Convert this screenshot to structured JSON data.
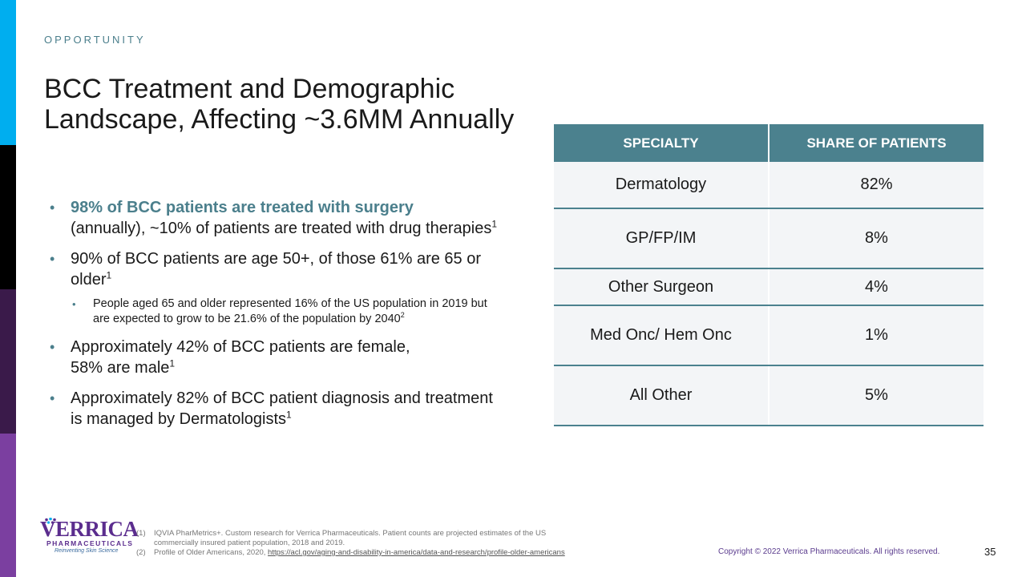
{
  "edge_colors": [
    "#00aeef",
    "#000000",
    "#3a1a4a",
    "#7b3fa0"
  ],
  "eyebrow": "OPPORTUNITY",
  "title": "BCC Treatment and Demographic Landscape, Affecting ~3.6MM Annually",
  "bullets": [
    {
      "highlight": "98% of BCC patients are treated with surgery",
      "text": "(annually), ~10% of patients are treated with drug therapies",
      "sup": "1"
    },
    {
      "text": "90% of BCC patients are age 50+, of those 61% are 65 or older",
      "sup": "1",
      "sub": {
        "text": "People aged 65 and older represented 16% of the US population in 2019 but are expected to grow to be 21.6% of the population by 2040",
        "sup": "2"
      }
    },
    {
      "line1": "Approximately 42% of BCC patients are female,",
      "line2": "58% are male",
      "sup": "1"
    },
    {
      "text": "Approximately 82% of BCC patient diagnosis and treatment is managed by Dermatologists",
      "sup": "1"
    }
  ],
  "table": {
    "headers": [
      "SPECIALTY",
      "SHARE OF PATIENTS"
    ],
    "rows": [
      {
        "specialty": "Dermatology",
        "share": "82%"
      },
      {
        "specialty": "GP/FP/IM",
        "share": "8%"
      },
      {
        "specialty": "Other Surgeon",
        "share": "4%"
      },
      {
        "specialty": "Med Onc/ Hem Onc",
        "share": "1%"
      },
      {
        "specialty": "All Other",
        "share": "5%"
      }
    ]
  },
  "logo": {
    "word": "VERRICA",
    "sub": "PHARMACEUTICALS",
    "tagline": "Reinventing Skin Science"
  },
  "footnotes": [
    {
      "num": "(1)",
      "text": "IQVIA PharMetrics+. Custom research for Verrica Pharmaceuticals.  Patient counts are projected estimates of the US commercially insured patient population, 2018 and 2019."
    },
    {
      "num": "(2)",
      "text": "Profile of Older Americans, 2020, ",
      "link": "https://acl.gov/aging-and-disability-in-america/data-and-research/profile-older-americans"
    }
  ],
  "copyright": "Copyright © 2022 Verrica Pharmaceuticals. All rights reserved.",
  "page_number": "35"
}
